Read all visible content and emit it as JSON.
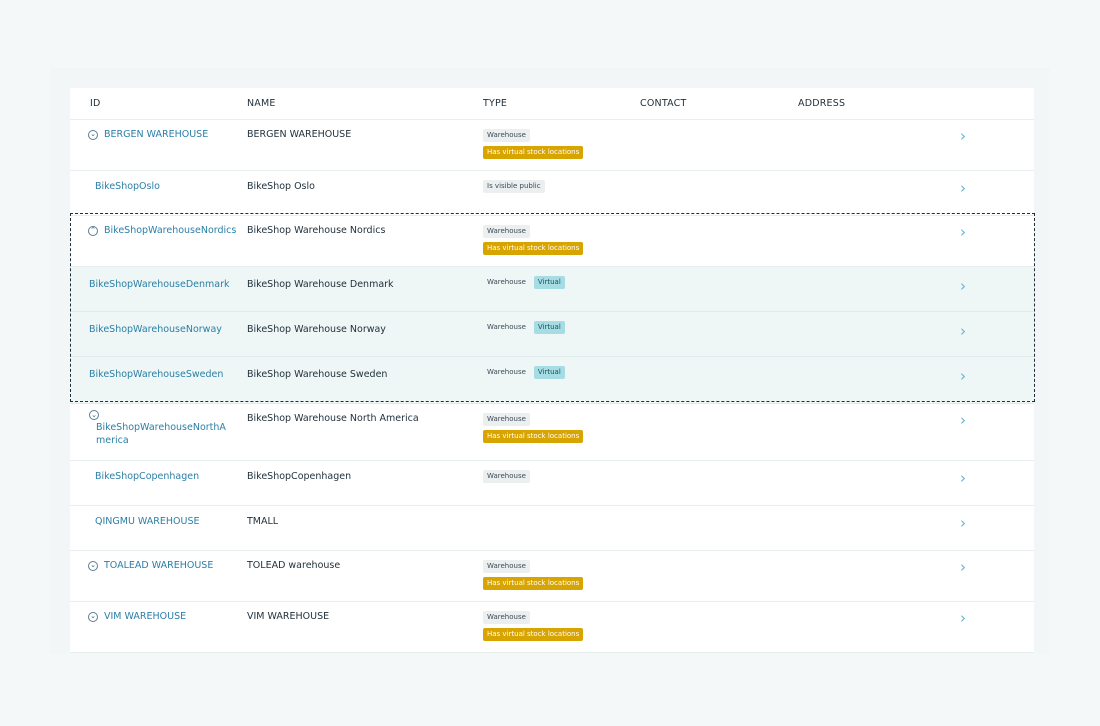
{
  "columns": {
    "id": "ID",
    "name": "NAME",
    "type": "TYPE",
    "contact": "CONTACT",
    "address": "ADDRESS"
  },
  "rows": [
    {
      "id": "BERGEN WAREHOUSE",
      "name": "BERGEN WAREHOUSE",
      "expander": "chevron-down",
      "tags": [
        "Warehouse",
        "Has virtual stock locations"
      ]
    },
    {
      "id": "BikeShopOslo",
      "name": "BikeShop Oslo",
      "expander": null,
      "tags": [
        "Is visible public"
      ]
    },
    {
      "id": "BikeShopWarehouseNordics",
      "name": "BikeShop Warehouse Nordics",
      "expander": "chevron-up",
      "tags": [
        "Warehouse",
        "Has virtual stock locations"
      ]
    },
    {
      "id": "BikeShopWarehouseDenmark",
      "name": "BikeShop Warehouse Denmark",
      "child": true,
      "tags": [
        "Warehouse",
        "Virtual"
      ]
    },
    {
      "id": "BikeShopWarehouseNorway",
      "name": "BikeShop Warehouse Norway",
      "child": true,
      "tags": [
        "Warehouse",
        "Virtual"
      ]
    },
    {
      "id": "BikeShopWarehouseSweden",
      "name": "BikeShop Warehouse Sweden",
      "child": true,
      "tags": [
        "Warehouse",
        "Virtual"
      ]
    },
    {
      "id": "BikeShopWarehouseNorthAmerica",
      "name": "BikeShop Warehouse North America",
      "expander": "chevron-down",
      "tags": [
        "Warehouse",
        "Has virtual stock locations"
      ]
    },
    {
      "id": "BikeShopCopenhagen",
      "name": "BikeShopCopenhagen",
      "expander": null,
      "tags": [
        "Warehouse"
      ]
    },
    {
      "id": "QINGMU WAREHOUSE",
      "name": "TMALL",
      "expander": null,
      "tags": []
    },
    {
      "id": "TOALEAD WAREHOUSE",
      "name": "TOLEAD warehouse",
      "expander": "chevron-down",
      "tags": [
        "Warehouse",
        "Has virtual stock locations"
      ]
    },
    {
      "id": "VIM WAREHOUSE",
      "name": "VIM WAREHOUSE",
      "expander": "chevron-down",
      "tags": [
        "Warehouse",
        "Has virtual stock locations"
      ]
    }
  ],
  "icons": {
    "row_arrow": "chevron-right-icon",
    "expand": "chevron-down-icon",
    "collapse": "chevron-up-icon"
  },
  "colors": {
    "link": "#2b7fa6",
    "tag_yellow": "#d8a400",
    "tag_cyan": "#a6dde4",
    "child_row_bg": "#eef6f6",
    "chevron": "#64b4cf"
  }
}
